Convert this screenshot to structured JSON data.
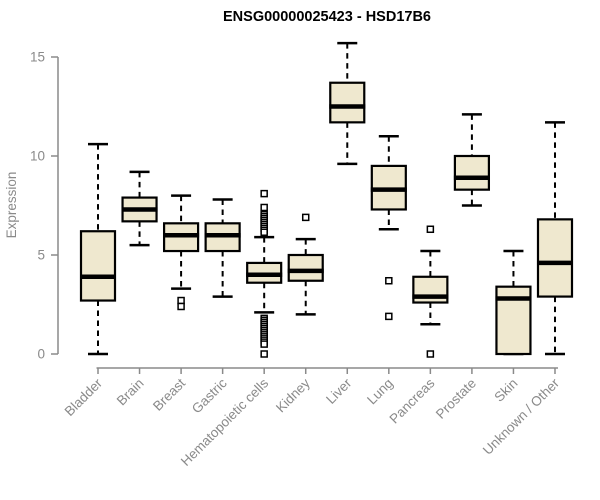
{
  "page": {
    "background": "#ffffff"
  },
  "chart_data": {
    "type": "boxplot",
    "title": "ENSG00000025423 - HSD17B6",
    "xlabel": "",
    "ylabel": "Expression",
    "ylim": [
      0,
      15.7
    ],
    "yticks": [
      0,
      5,
      10,
      15
    ],
    "grid": false,
    "legend": false,
    "categories": [
      "Bladder",
      "Brain",
      "Breast",
      "Gastric",
      "Hematopoietic cells",
      "Kidney",
      "Liver",
      "Lung",
      "Pancreas",
      "Prostate",
      "Skin",
      "Unknown / Other"
    ],
    "series": [
      {
        "name": "Bladder",
        "whisker_low": 0.0,
        "q1": 2.7,
        "median": 3.9,
        "q3": 6.2,
        "whisker_high": 10.6,
        "outliers": []
      },
      {
        "name": "Brain",
        "whisker_low": 5.5,
        "q1": 6.7,
        "median": 7.3,
        "q3": 7.9,
        "whisker_high": 9.2,
        "outliers": []
      },
      {
        "name": "Breast",
        "whisker_low": 3.3,
        "q1": 5.2,
        "median": 6.0,
        "q3": 6.6,
        "whisker_high": 8.0,
        "outliers": [
          2.7,
          2.4
        ]
      },
      {
        "name": "Gastric",
        "whisker_low": 2.9,
        "q1": 5.2,
        "median": 6.0,
        "q3": 6.6,
        "whisker_high": 7.8,
        "outliers": []
      },
      {
        "name": "Hematopoietic cells",
        "whisker_low": 2.1,
        "q1": 3.6,
        "median": 4.0,
        "q3": 4.6,
        "whisker_high": 5.9,
        "outliers": [
          8.1,
          7.4,
          7.05,
          6.95,
          6.85,
          6.75,
          6.65,
          6.55,
          6.45,
          6.35,
          6.25,
          6.15,
          1.8,
          1.7,
          1.6,
          1.5,
          1.4,
          1.3,
          1.2,
          1.1,
          1.0,
          0.9,
          0.8,
          0.7,
          0.6,
          0.5,
          0.0
        ]
      },
      {
        "name": "Kidney",
        "whisker_low": 2.0,
        "q1": 3.7,
        "median": 4.2,
        "q3": 5.0,
        "whisker_high": 5.8,
        "outliers": [
          6.9
        ]
      },
      {
        "name": "Liver",
        "whisker_low": 9.6,
        "q1": 11.7,
        "median": 12.5,
        "q3": 13.7,
        "whisker_high": 15.7,
        "outliers": []
      },
      {
        "name": "Lung",
        "whisker_low": 6.3,
        "q1": 7.3,
        "median": 8.3,
        "q3": 9.5,
        "whisker_high": 11.0,
        "outliers": [
          3.7,
          1.9
        ]
      },
      {
        "name": "Pancreas",
        "whisker_low": 1.5,
        "q1": 2.6,
        "median": 2.9,
        "q3": 3.9,
        "whisker_high": 5.2,
        "outliers": [
          6.3,
          0.0
        ]
      },
      {
        "name": "Prostate",
        "whisker_low": 7.5,
        "q1": 8.3,
        "median": 8.9,
        "q3": 10.0,
        "whisker_high": 12.1,
        "outliers": []
      },
      {
        "name": "Skin",
        "whisker_low": 0.0,
        "q1": 0.0,
        "median": 2.8,
        "q3": 3.4,
        "whisker_high": 5.2,
        "outliers": []
      },
      {
        "name": "Unknown / Other",
        "whisker_low": 0.0,
        "q1": 2.9,
        "median": 4.6,
        "q3": 6.8,
        "whisker_high": 11.7,
        "outliers": []
      }
    ],
    "style": {
      "box_fill": "#efe8cf",
      "box_border": "#000000",
      "median_color": "#000000",
      "whisker_color": "#000000",
      "whisker_style": "dashed",
      "outlier_marker": "open-square",
      "axis_color": "#8a8a8a",
      "title_color": "#000000",
      "background": "#ffffff"
    }
  }
}
